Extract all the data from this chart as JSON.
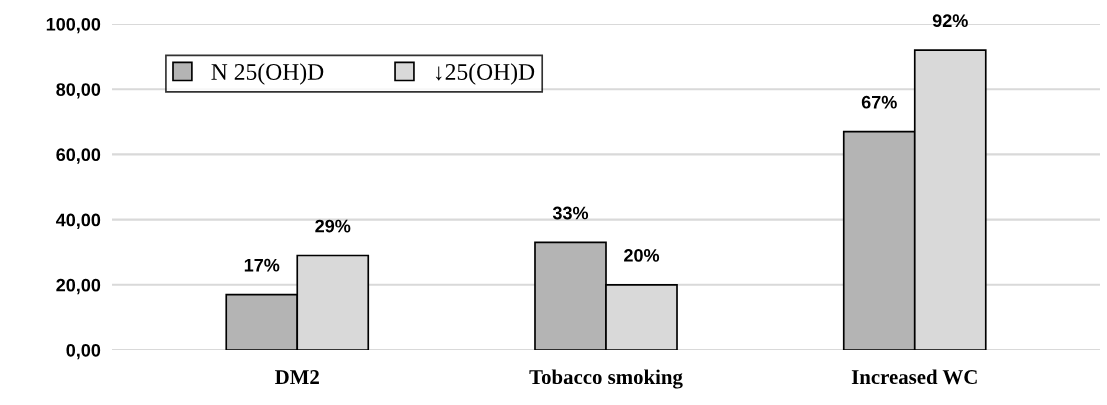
{
  "chart_data": {
    "type": "bar",
    "categories": [
      "DM2",
      "Tobacco smoking",
      "Increased WC"
    ],
    "series": [
      {
        "name": "N 25(OH)D",
        "color": "#b4b4b4",
        "values": [
          17,
          33,
          67
        ],
        "value_labels": [
          "17%",
          "33%",
          "67%"
        ]
      },
      {
        "name": "↓25(OH)D",
        "color": "#d9d9d9",
        "values": [
          29,
          20,
          92
        ],
        "value_labels": [
          "29%",
          "20%",
          "92%"
        ]
      }
    ],
    "ylim": [
      0,
      100
    ],
    "yticks": [
      {
        "value": 0,
        "label": "0,00"
      },
      {
        "value": 20,
        "label": "20,00"
      },
      {
        "value": 40,
        "label": "40,00"
      },
      {
        "value": 60,
        "label": "60,00"
      },
      {
        "value": 80,
        "label": "80,00"
      },
      {
        "value": 100,
        "label": "100,00"
      }
    ],
    "grid": "y",
    "legend": "top"
  }
}
